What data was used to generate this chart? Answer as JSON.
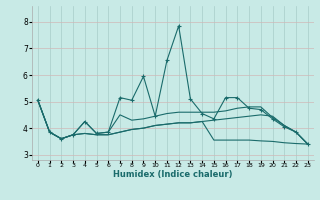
{
  "xlabel": "Humidex (Indice chaleur)",
  "xlim": [
    -0.5,
    23.5
  ],
  "ylim": [
    2.8,
    8.6
  ],
  "yticks": [
    3,
    4,
    5,
    6,
    7,
    8
  ],
  "xticks": [
    0,
    1,
    2,
    3,
    4,
    5,
    6,
    7,
    8,
    9,
    10,
    11,
    12,
    13,
    14,
    15,
    16,
    17,
    18,
    19,
    20,
    21,
    22,
    23
  ],
  "bg_color": "#c8eae6",
  "grid_color_v": "#a8ccc8",
  "grid_color_h": "#d0b8b8",
  "line_color": "#1a6b6b",
  "series": [
    [
      5.05,
      3.85,
      3.6,
      3.75,
      4.25,
      3.8,
      3.85,
      5.15,
      5.05,
      5.95,
      4.45,
      6.55,
      7.85,
      5.1,
      4.55,
      4.35,
      5.15,
      5.15,
      4.75,
      4.7,
      4.35,
      4.05,
      3.85,
      3.4
    ],
    [
      5.05,
      3.85,
      3.6,
      3.75,
      4.25,
      3.8,
      3.85,
      4.5,
      4.3,
      4.35,
      4.45,
      4.55,
      4.6,
      4.6,
      4.6,
      4.6,
      4.65,
      4.75,
      4.8,
      4.8,
      4.4,
      4.1,
      3.85,
      3.4
    ],
    [
      5.05,
      3.85,
      3.6,
      3.75,
      3.8,
      3.75,
      3.75,
      3.85,
      3.95,
      4.0,
      4.1,
      4.15,
      4.2,
      4.2,
      4.25,
      3.55,
      3.55,
      3.55,
      3.55,
      3.52,
      3.5,
      3.45,
      3.42,
      3.4
    ],
    [
      5.05,
      3.85,
      3.6,
      3.75,
      3.8,
      3.75,
      3.75,
      3.85,
      3.95,
      4.0,
      4.1,
      4.15,
      4.2,
      4.2,
      4.25,
      4.3,
      4.35,
      4.4,
      4.45,
      4.5,
      4.45,
      4.1,
      3.85,
      3.4
    ]
  ]
}
